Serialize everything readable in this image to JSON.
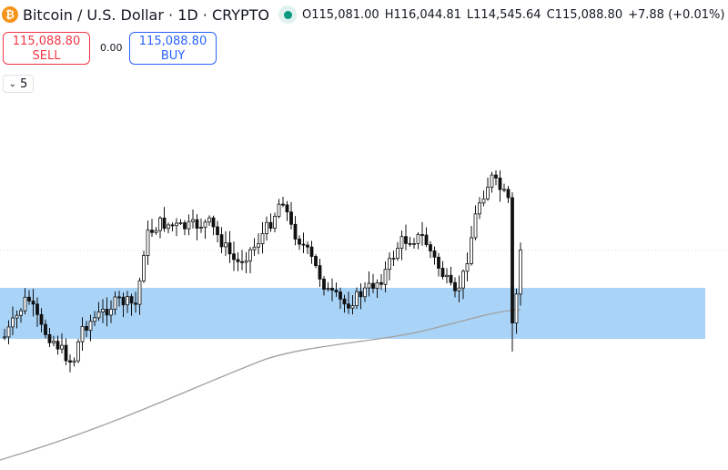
{
  "header": {
    "coin_icon": "bitcoin-icon",
    "title": "Bitcoin / U.S. Dollar · 1D · CRYPTO",
    "market_status": "open",
    "open": "O115,081.00",
    "high": "H116,044.81",
    "low": "L114,545.64",
    "close": "C115,088.80",
    "change": "+7.88 (+0.01%)"
  },
  "trade": {
    "sell_price": "115,088.80",
    "sell_label": "SELL",
    "spread": "0.00",
    "buy_price": "115,088.80",
    "buy_label": "BUY"
  },
  "indicators": {
    "count": "5"
  },
  "colors": {
    "sell": "#f23645",
    "buy": "#2962ff",
    "zone": "#a9d3f7",
    "status": "#089981",
    "ma": "#a0a0a0"
  }
}
